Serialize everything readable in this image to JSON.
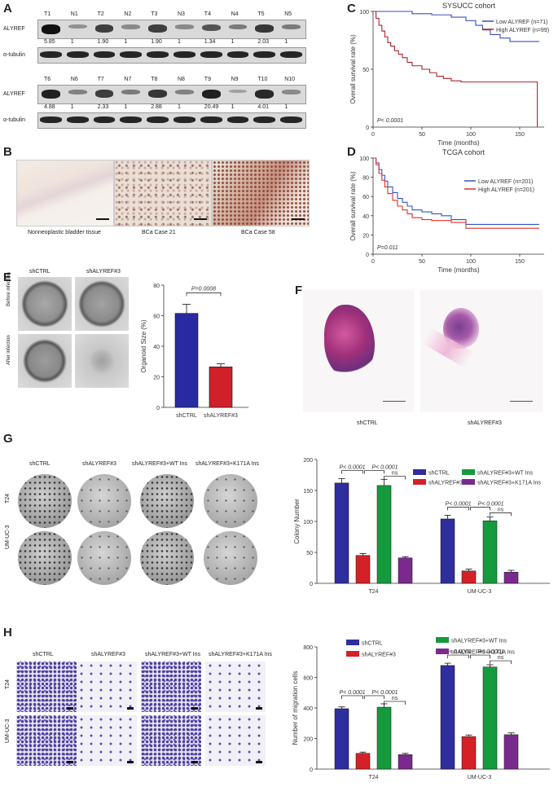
{
  "panels": {
    "A": "A",
    "B": "B",
    "C": "C",
    "D": "D",
    "E": "E",
    "F": "F",
    "G": "G",
    "H": "H"
  },
  "blotA": {
    "row1_lanes": [
      "T1",
      "N1",
      "T2",
      "N2",
      "T3",
      "N3",
      "T4",
      "N4",
      "T5",
      "N5"
    ],
    "row1_ratios": [
      "5.85",
      "1",
      "1.90",
      "1",
      "1.90",
      "1",
      "1.34",
      "1",
      "2.03",
      "1"
    ],
    "row2_lanes": [
      "T6",
      "N6",
      "T7",
      "N7",
      "T8",
      "N8",
      "T9",
      "N9",
      "T10",
      "N10"
    ],
    "row2_ratios": [
      "4.88",
      "1",
      "2.33",
      "1",
      "2.88",
      "1",
      "20.49",
      "1",
      "4.01",
      "1"
    ],
    "protein1": "ALYREF",
    "protein2": "α-tubulin"
  },
  "ihcB": {
    "captions": [
      "Nonneoplastic bladder tissue",
      "BCa Case 21",
      "BCa Case 58"
    ]
  },
  "survivalC": {
    "title": "SYSUCC cohort",
    "ylabel": "Overall survival rate (%)",
    "xlabel": "Time (months)",
    "legend_low": "Low ALYREF (n=71)",
    "legend_high": "High ALYREF (n=99)",
    "pvalue": "P< 0.0001",
    "xticks": [
      "0",
      "50",
      "100",
      "150"
    ],
    "yticks": [
      "0",
      "50",
      "100"
    ],
    "colors": {
      "low": "#3a4fbf",
      "high": "#b3202a"
    }
  },
  "survivalD": {
    "title": "TCGA cohort",
    "ylabel": "Overall survival rate (%)",
    "xlabel": "Time (months)",
    "legend_low": "Low ALYREF (n=201)",
    "legend_high": "High ALYREF (n=201)",
    "pvalue": "P=0.011",
    "xticks": [
      "0",
      "50",
      "100",
      "150"
    ],
    "yticks": [
      "0",
      "20",
      "40",
      "60",
      "80",
      "100"
    ],
    "colors": {
      "low": "#2f56c4",
      "high": "#e0302a"
    }
  },
  "organoidE": {
    "col_labels": [
      "shCTRL",
      "shALYREF#3"
    ],
    "row_labels": [
      "Before infection",
      "After infection"
    ]
  },
  "heF": {
    "labels": [
      "shCTRL",
      "shALYREF#3"
    ]
  },
  "colonyG": {
    "col_labels": [
      "shCTRL",
      "shALYREF#3",
      "shALYREF#3+WT Ins",
      "shALYREF#3+K171A Ins"
    ],
    "row_labels": [
      "T24",
      "UM-UC-3"
    ]
  },
  "migrationH": {
    "col_labels": [
      "shCTRL",
      "shALYREF#3",
      "shALYREF#3+WT Ins",
      "shALYREF#3+K171A Ins"
    ],
    "row_labels": [
      "T24",
      "UM-UC-3"
    ]
  },
  "chart_data": [
    {
      "id": "E",
      "type": "bar",
      "categories": [
        "shCTRL",
        "shALYREF#3"
      ],
      "values": [
        61.5,
        26.5
      ],
      "errors": [
        6,
        2
      ],
      "colors": [
        "#2a2aa0",
        "#d0202a"
      ],
      "ylabel": "Organoid Size (%)",
      "ylim": [
        0,
        80
      ],
      "yticks": [
        "0",
        "20",
        "40",
        "60",
        "80"
      ],
      "annotation": "P=0.0008"
    },
    {
      "id": "G",
      "type": "bar",
      "categories": [
        "T24",
        "UM-UC-3"
      ],
      "series": [
        {
          "name": "shCTRL",
          "values": [
            162,
            104
          ],
          "errors": [
            7,
            6
          ],
          "color": "#2e2e9e"
        },
        {
          "name": "shALYREF#3",
          "values": [
            45,
            20
          ],
          "errors": [
            3,
            3
          ],
          "color": "#d42127"
        },
        {
          "name": "shALYREF#3+WT Ins",
          "values": [
            158,
            101
          ],
          "errors": [
            10,
            6
          ],
          "color": "#159a3d"
        },
        {
          "name": "shALYREF#3+K171A Ins",
          "values": [
            41,
            18
          ],
          "errors": [
            2,
            3
          ],
          "color": "#7a2a8c"
        }
      ],
      "ylabel": "Colony Number",
      "ylim": [
        0,
        200
      ],
      "yticks": [
        "0",
        "50",
        "100",
        "150",
        "200"
      ],
      "annotations": {
        "t24_a": "P< 0.0001",
        "t24_b": "P< 0.0001",
        "t24_ns": "ns",
        "um_a": "P< 0.0001",
        "um_b": "P< 0.0001",
        "um_ns": "ns"
      }
    },
    {
      "id": "H",
      "type": "bar",
      "categories": [
        "T24",
        "UM-UC-3"
      ],
      "series": [
        {
          "name": "shCTRL",
          "values": [
            395,
            678
          ],
          "errors": [
            12,
            15
          ],
          "color": "#2e2e9e"
        },
        {
          "name": "shALYREF#3",
          "values": [
            103,
            213
          ],
          "errors": [
            8,
            10
          ],
          "color": "#d42127"
        },
        {
          "name": "shALYREF#3+WT Ins",
          "values": [
            405,
            668
          ],
          "errors": [
            22,
            15
          ],
          "color": "#159a3d"
        },
        {
          "name": "shALYREF#3+K171A Ins",
          "values": [
            95,
            225
          ],
          "errors": [
            8,
            12
          ],
          "color": "#7a2a8c"
        }
      ],
      "ylabel": "Number of migration cells",
      "ylim": [
        0,
        800
      ],
      "yticks": [
        "0",
        "200",
        "400",
        "600",
        "800"
      ],
      "annotations": {
        "t24_a": "P< 0.0001",
        "t24_b": "P< 0.0001",
        "t24_ns": "ns",
        "um_a": "P< 0.0001",
        "um_b": "P< 0.0001",
        "um_ns": "ns"
      }
    }
  ]
}
